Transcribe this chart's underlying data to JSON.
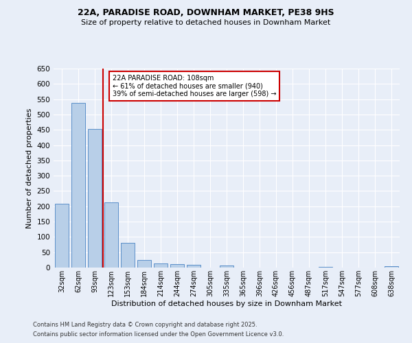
{
  "title1": "22A, PARADISE ROAD, DOWNHAM MARKET, PE38 9HS",
  "title2": "Size of property relative to detached houses in Downham Market",
  "xlabel": "Distribution of detached houses by size in Downham Market",
  "ylabel": "Number of detached properties",
  "footer1": "Contains HM Land Registry data © Crown copyright and database right 2025.",
  "footer2": "Contains public sector information licensed under the Open Government Licence v3.0.",
  "categories": [
    "32sqm",
    "62sqm",
    "93sqm",
    "123sqm",
    "153sqm",
    "184sqm",
    "214sqm",
    "244sqm",
    "274sqm",
    "305sqm",
    "335sqm",
    "365sqm",
    "396sqm",
    "426sqm",
    "456sqm",
    "487sqm",
    "517sqm",
    "547sqm",
    "577sqm",
    "608sqm",
    "638sqm"
  ],
  "values": [
    208,
    537,
    453,
    212,
    80,
    25,
    14,
    11,
    8,
    0,
    6,
    0,
    0,
    0,
    0,
    0,
    3,
    0,
    0,
    0,
    4
  ],
  "bar_color": "#b8cfe8",
  "bar_edge_color": "#5b8fc9",
  "bg_color": "#e8eef8",
  "grid_color": "#ffffff",
  "property_line_color": "#cc0000",
  "annotation_text": "22A PARADISE ROAD: 108sqm\n← 61% of detached houses are smaller (940)\n39% of semi-detached houses are larger (598) →",
  "annotation_box_color": "#cc0000",
  "ylim": [
    0,
    650
  ],
  "yticks": [
    0,
    50,
    100,
    150,
    200,
    250,
    300,
    350,
    400,
    450,
    500,
    550,
    600,
    650
  ]
}
